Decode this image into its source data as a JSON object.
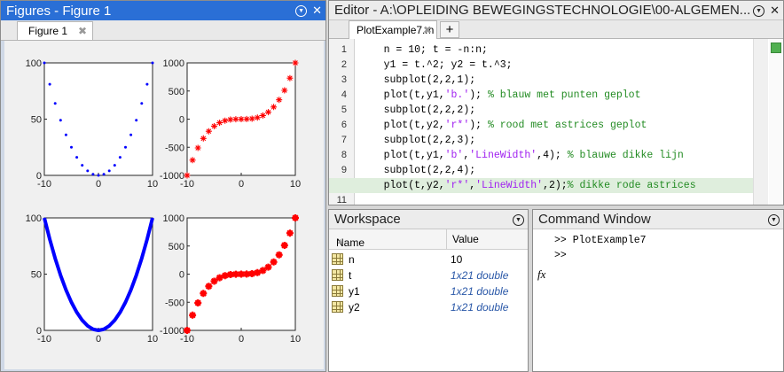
{
  "figure_window": {
    "title": "Figures - Figure 1",
    "tab_label": "Figure 1"
  },
  "editor": {
    "title": "Editor - A:\\OPLEIDING BEWEGINGSTECHNOLOGIE\\00-ALGEMEN...",
    "tab_label": "PlotExample7.m",
    "new_tab_label": "+",
    "lines": [
      {
        "n": "1",
        "segments": [
          {
            "t": "    n = 10; t = -n:n;",
            "c": "code"
          }
        ]
      },
      {
        "n": "2",
        "segments": [
          {
            "t": "    y1 = t.^2; y2 = t.^3;",
            "c": "code"
          }
        ]
      },
      {
        "n": "3",
        "segments": [
          {
            "t": "    subplot(2,2,1);",
            "c": "code"
          }
        ]
      },
      {
        "n": "4",
        "segments": [
          {
            "t": "    plot(t,y1,",
            "c": "code"
          },
          {
            "t": "'b.'",
            "c": "str"
          },
          {
            "t": "); ",
            "c": "code"
          },
          {
            "t": "% blauw met punten geplot",
            "c": "cmt"
          }
        ]
      },
      {
        "n": "5",
        "segments": [
          {
            "t": "    subplot(2,2,2);",
            "c": "code"
          }
        ]
      },
      {
        "n": "6",
        "segments": [
          {
            "t": "    plot(t,y2,",
            "c": "code"
          },
          {
            "t": "'r*'",
            "c": "str"
          },
          {
            "t": "); ",
            "c": "code"
          },
          {
            "t": "% rood met astrices geplot",
            "c": "cmt"
          }
        ]
      },
      {
        "n": "7",
        "segments": [
          {
            "t": "    subplot(2,2,3);",
            "c": "code"
          }
        ]
      },
      {
        "n": "8",
        "segments": [
          {
            "t": "    plot(t,y1,",
            "c": "code"
          },
          {
            "t": "'b'",
            "c": "str"
          },
          {
            "t": ",",
            "c": "code"
          },
          {
            "t": "'LineWidth'",
            "c": "str"
          },
          {
            "t": ",4); ",
            "c": "code"
          },
          {
            "t": "% blauwe dikke lijn",
            "c": "cmt"
          }
        ]
      },
      {
        "n": "9",
        "segments": [
          {
            "t": "    subplot(2,2,4);",
            "c": "code"
          }
        ]
      },
      {
        "n": "10",
        "segments": [
          {
            "t": "    plot(t,y2,",
            "c": "code"
          },
          {
            "t": "'r*'",
            "c": "str"
          },
          {
            "t": ",",
            "c": "code"
          },
          {
            "t": "'LineWidth'",
            "c": "str"
          },
          {
            "t": ",2);",
            "c": "code"
          },
          {
            "t": "% dikke rode astrices",
            "c": "cmt"
          }
        ]
      },
      {
        "n": "11",
        "segments": []
      }
    ]
  },
  "workspace": {
    "title": "Workspace",
    "col_name": "Name",
    "col_value": "Value",
    "rows": [
      {
        "name": "n",
        "value": "10",
        "italic": false
      },
      {
        "name": "t",
        "value": "1x21 double",
        "italic": true
      },
      {
        "name": "y1",
        "value": "1x21 double",
        "italic": true
      },
      {
        "name": "y2",
        "value": "1x21 double",
        "italic": true
      }
    ]
  },
  "command_window": {
    "title": "Command Window",
    "fx_label": "fx",
    "line1": ">> PlotExample7",
    "prompt": ">>"
  },
  "colors": {
    "active_title": "#2a6fd6",
    "blue": "#0000ff",
    "red": "#ff0000",
    "highlight": "#dfeedd"
  },
  "chart_data": [
    {
      "type": "scatter",
      "series": [
        {
          "marker": "dot",
          "color": "#0000ff",
          "x": [
            -10,
            -9,
            -8,
            -7,
            -6,
            -5,
            -4,
            -3,
            -2,
            -1,
            0,
            1,
            2,
            3,
            4,
            5,
            6,
            7,
            8,
            9,
            10
          ],
          "y": [
            100,
            81,
            64,
            49,
            36,
            25,
            16,
            9,
            4,
            1,
            0,
            1,
            4,
            9,
            16,
            25,
            36,
            49,
            64,
            81,
            100
          ]
        }
      ],
      "xlim": [
        -10,
        10
      ],
      "ylim": [
        0,
        100
      ],
      "xticks": [
        "-10",
        "0",
        "10"
      ],
      "yticks": [
        "0",
        "50",
        "100"
      ]
    },
    {
      "type": "scatter",
      "series": [
        {
          "marker": "asterisk",
          "color": "#ff0000",
          "x": [
            -10,
            -9,
            -8,
            -7,
            -6,
            -5,
            -4,
            -3,
            -2,
            -1,
            0,
            1,
            2,
            3,
            4,
            5,
            6,
            7,
            8,
            9,
            10
          ],
          "y": [
            -1000,
            -729,
            -512,
            -343,
            -216,
            -125,
            -64,
            -27,
            -8,
            -1,
            0,
            1,
            8,
            27,
            64,
            125,
            216,
            343,
            512,
            729,
            1000
          ]
        }
      ],
      "xlim": [
        -10,
        10
      ],
      "ylim": [
        -1000,
        1000
      ],
      "xticks": [
        "-10",
        "0",
        "10"
      ],
      "yticks": [
        "-1000",
        "-500",
        "0",
        "500",
        "1000"
      ]
    },
    {
      "type": "line",
      "series": [
        {
          "color": "#0000ff",
          "linewidth": 4,
          "x": [
            -10,
            -9,
            -8,
            -7,
            -6,
            -5,
            -4,
            -3,
            -2,
            -1,
            0,
            1,
            2,
            3,
            4,
            5,
            6,
            7,
            8,
            9,
            10
          ],
          "y": [
            100,
            81,
            64,
            49,
            36,
            25,
            16,
            9,
            4,
            1,
            0,
            1,
            4,
            9,
            16,
            25,
            36,
            49,
            64,
            81,
            100
          ]
        }
      ],
      "xlim": [
        -10,
        10
      ],
      "ylim": [
        0,
        100
      ],
      "xticks": [
        "-10",
        "0",
        "10"
      ],
      "yticks": [
        "0",
        "50",
        "100"
      ]
    },
    {
      "type": "scatter",
      "series": [
        {
          "marker": "asterisk-bold",
          "color": "#ff0000",
          "x": [
            -10,
            -9,
            -8,
            -7,
            -6,
            -5,
            -4,
            -3,
            -2,
            -1,
            0,
            1,
            2,
            3,
            4,
            5,
            6,
            7,
            8,
            9,
            10
          ],
          "y": [
            -1000,
            -729,
            -512,
            -343,
            -216,
            -125,
            -64,
            -27,
            -8,
            -1,
            0,
            1,
            8,
            27,
            64,
            125,
            216,
            343,
            512,
            729,
            1000
          ]
        }
      ],
      "xlim": [
        -10,
        10
      ],
      "ylim": [
        -1000,
        1000
      ],
      "xticks": [
        "-10",
        "0",
        "10"
      ],
      "yticks": [
        "-1000",
        "-500",
        "0",
        "500",
        "1000"
      ]
    }
  ]
}
